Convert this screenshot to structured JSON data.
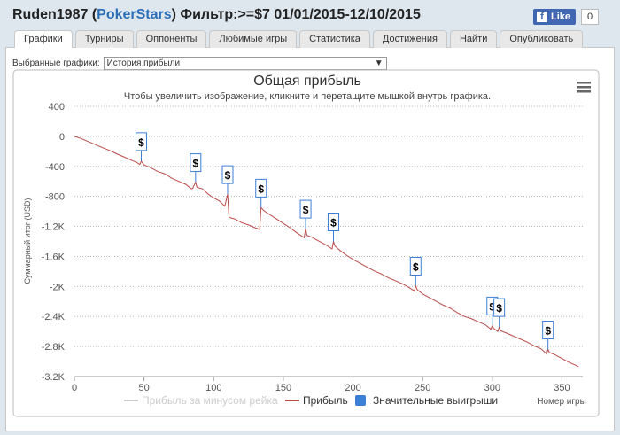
{
  "header": {
    "title_parts": [
      "Ruden1987 (",
      "PokerStars",
      ") Фильтр:>=$7 01/01/2015-12/10/2015"
    ],
    "like_label": "Like",
    "like_count": "0"
  },
  "tabs": [
    "Графики",
    "Турниры",
    "Оппоненты",
    "Любимые игры",
    "Статистика",
    "Достижения",
    "Найти",
    "Опубликовать"
  ],
  "active_tab": 0,
  "filter": {
    "label": "Выбранные графики:",
    "value": "История прибыли"
  },
  "chart_data": {
    "type": "line",
    "title": "Общая прибыль",
    "subtitle": "Чтобы увеличить изображение, кликните и перетащите мышкой внутрь графика.",
    "y_label": "Суммарный итог (USD)",
    "x_label": "Номер игры",
    "xlim": [
      0,
      365
    ],
    "xticks": [
      0,
      50,
      100,
      150,
      200,
      250,
      300,
      350
    ],
    "ylim": [
      -3200,
      400
    ],
    "yticks": [
      400,
      0,
      -400,
      -800,
      {
        "value": -1200,
        "label": "-1.2K"
      },
      {
        "value": -1600,
        "label": "-1.6K"
      },
      {
        "value": -2000,
        "label": "-2K"
      },
      {
        "value": -2400,
        "label": "-2.4K"
      },
      {
        "value": -2800,
        "label": "-2.8K"
      },
      {
        "value": -3200,
        "label": "-3.2K"
      }
    ],
    "grid": true,
    "series": [
      {
        "name": "Прибыль за минусом рейка",
        "color": "#cccccc",
        "visible": false,
        "x": [],
        "values": []
      },
      {
        "name": "Прибыль",
        "color": "#b94a48",
        "visible": true,
        "x": [
          0,
          5,
          10,
          15,
          20,
          25,
          30,
          35,
          40,
          45,
          47,
          48,
          50,
          55,
          60,
          65,
          70,
          75,
          80,
          84,
          85,
          87,
          88,
          92,
          96,
          100,
          104,
          108,
          110,
          111,
          115,
          120,
          125,
          130,
          133,
          134,
          136,
          140,
          145,
          150,
          155,
          160,
          165,
          166,
          167,
          170,
          175,
          180,
          185,
          186,
          187,
          190,
          195,
          200,
          205,
          210,
          215,
          220,
          225,
          230,
          235,
          240,
          244,
          245,
          246,
          250,
          255,
          260,
          265,
          270,
          275,
          280,
          285,
          290,
          295,
          299,
          300,
          301,
          304,
          305,
          306,
          310,
          315,
          320,
          325,
          330,
          335,
          339,
          340,
          341,
          345,
          350,
          355,
          360,
          362
        ],
        "values": [
          0,
          -30,
          -70,
          -110,
          -150,
          -185,
          -230,
          -270,
          -310,
          -350,
          -375,
          -330,
          -380,
          -420,
          -470,
          -500,
          -560,
          -600,
          -640,
          -700,
          -690,
          -610,
          -680,
          -700,
          -770,
          -820,
          -860,
          -930,
          -770,
          -1080,
          -1100,
          -1150,
          -1180,
          -1220,
          -1240,
          -950,
          -990,
          -1040,
          -1100,
          -1160,
          -1220,
          -1290,
          -1350,
          -1230,
          -1320,
          -1340,
          -1390,
          -1440,
          -1500,
          -1400,
          -1460,
          -1510,
          -1580,
          -1640,
          -1690,
          -1740,
          -1790,
          -1830,
          -1880,
          -1920,
          -1960,
          -2010,
          -2060,
          -1990,
          -2040,
          -2100,
          -2150,
          -2200,
          -2250,
          -2290,
          -2350,
          -2400,
          -2430,
          -2470,
          -2510,
          -2570,
          -2520,
          -2560,
          -2600,
          -2540,
          -2590,
          -2620,
          -2660,
          -2700,
          -2740,
          -2790,
          -2830,
          -2900,
          -2840,
          -2880,
          -2910,
          -2960,
          -3010,
          -3050,
          -3070
        ]
      },
      {
        "name": "Значительные выигрыши",
        "color": "#3d7fd6",
        "visible": true,
        "flag_text": "$",
        "x": [
          48,
          87,
          110,
          134,
          166,
          186,
          245,
          300,
          305,
          340
        ],
        "values": [
          -330,
          -610,
          -770,
          -950,
          -1230,
          -1400,
          -1990,
          -2520,
          -2540,
          -2840
        ]
      }
    ]
  }
}
